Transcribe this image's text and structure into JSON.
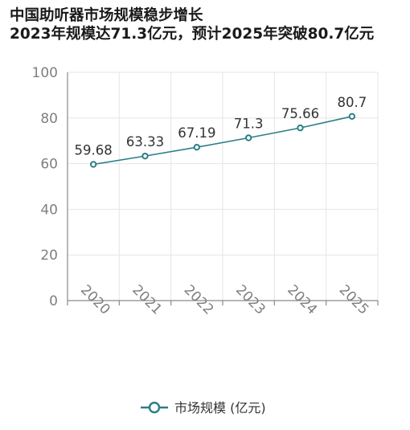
{
  "title_line1": "中国助听器市场规模稳步增长",
  "title_line2": "2023年规模达71.3亿元，预计2025年突破80.7亿元",
  "colors": {
    "line": "#2b7f86",
    "grid": "#e6e6e6",
    "axis": "#8a8a8a",
    "tick_text": "#7f7f7f"
  },
  "chart_data": {
    "type": "line",
    "title": "中国助听器市场规模稳步增长",
    "subtitle": "2023年规模达71.3亿元，预计2025年突破80.7亿元",
    "categories": [
      "2020",
      "2021",
      "2022",
      "2023",
      "2024",
      "2025"
    ],
    "series": [
      {
        "name": "市场规模 (亿元)",
        "values": [
          59.68,
          63.33,
          67.19,
          71.3,
          75.66,
          80.7
        ]
      }
    ],
    "value_labels": [
      "59.68",
      "63.33",
      "67.19",
      "71.3",
      "75.66",
      "80.7"
    ],
    "y_ticks": [
      "0",
      "20",
      "40",
      "60",
      "80",
      "100"
    ],
    "ylim": [
      0,
      100
    ],
    "grid": true,
    "legend": "bottom-center"
  }
}
